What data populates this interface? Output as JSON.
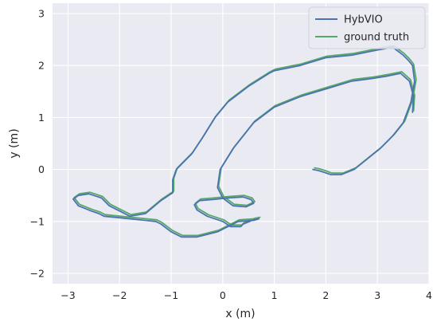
{
  "chart_data": {
    "type": "line",
    "xlabel": "x (m)",
    "ylabel": "y (m)",
    "xlim": [
      -3.3,
      4.0
    ],
    "ylim": [
      -2.2,
      3.2
    ],
    "xticks": [
      "−3",
      "−2",
      "−1",
      "0",
      "1",
      "2",
      "3",
      "4"
    ],
    "xtick_values": [
      -3,
      -2,
      -1,
      0,
      1,
      2,
      3,
      4
    ],
    "yticks": [
      "3",
      "2",
      "1",
      "0",
      "−1",
      "−2"
    ],
    "ytick_values": [
      3,
      2,
      1,
      0,
      -1,
      -2
    ],
    "grid": true,
    "background": "#eaeaf2",
    "legend_position": "top-right",
    "series": [
      {
        "name": "HybVIO",
        "color": "#4c72b0",
        "x": [
          1.75,
          1.85,
          1.95,
          2.1,
          2.3,
          2.55,
          2.8,
          3.05,
          3.3,
          3.5,
          3.65,
          3.72,
          3.68,
          3.6,
          3.5,
          3.3,
          3.0,
          2.5,
          2.0,
          1.5,
          1.0,
          0.9,
          0.5,
          0.1,
          -0.15,
          -0.4,
          -0.6,
          -0.9,
          -0.97,
          -0.97,
          -1.05,
          -1.2,
          -1.5,
          -1.8,
          -2.0,
          -2.2,
          -2.35,
          -2.5,
          -2.6,
          -2.8,
          -2.9,
          -2.8,
          -2.55,
          -2.4,
          -2.3,
          -2.0,
          -1.5,
          -1.3,
          -1.2,
          -1.0,
          -0.8,
          -0.5,
          -0.1,
          0.3,
          0.6,
          0.7,
          0.6,
          0.4,
          0.35,
          0.15,
          0.0,
          -0.3,
          -0.5,
          -0.55,
          -0.45,
          -0.2,
          0.1,
          0.4,
          0.55,
          0.6,
          0.45,
          0.2,
          0.0,
          -0.1,
          -0.05,
          0.2,
          0.6,
          1.0,
          1.5,
          2.0,
          2.5,
          2.9,
          3.2,
          3.45,
          3.62,
          3.7,
          3.68
        ],
        "y": [
          0.0,
          -0.02,
          -0.05,
          -0.1,
          -0.1,
          0.0,
          0.2,
          0.4,
          0.65,
          0.9,
          1.3,
          1.7,
          2.0,
          2.1,
          2.2,
          2.35,
          2.3,
          2.2,
          2.15,
          2.0,
          1.9,
          1.85,
          1.6,
          1.3,
          1.0,
          0.6,
          0.3,
          0.0,
          -0.2,
          -0.45,
          -0.5,
          -0.6,
          -0.85,
          -0.9,
          -0.8,
          -0.7,
          -0.55,
          -0.5,
          -0.47,
          -0.5,
          -0.57,
          -0.7,
          -0.8,
          -0.85,
          -0.9,
          -0.93,
          -0.98,
          -1.0,
          -1.05,
          -1.2,
          -1.3,
          -1.3,
          -1.2,
          -1.0,
          -0.98,
          -0.95,
          -0.97,
          -1.05,
          -1.1,
          -1.1,
          -1.0,
          -0.9,
          -0.78,
          -0.68,
          -0.6,
          -0.58,
          -0.55,
          -0.53,
          -0.58,
          -0.65,
          -0.72,
          -0.7,
          -0.55,
          -0.35,
          0.0,
          0.4,
          0.9,
          1.2,
          1.4,
          1.55,
          1.7,
          1.75,
          1.8,
          1.85,
          1.7,
          1.4,
          1.1
        ]
      },
      {
        "name": "ground truth",
        "color": "#55a868",
        "x": [
          1.78,
          1.88,
          1.98,
          2.12,
          2.33,
          2.58,
          2.83,
          3.08,
          3.33,
          3.53,
          3.68,
          3.75,
          3.7,
          3.62,
          3.52,
          3.32,
          3.02,
          2.52,
          2.02,
          1.52,
          1.02,
          0.92,
          0.52,
          0.12,
          -0.13,
          -0.38,
          -0.58,
          -0.88,
          -0.95,
          -0.95,
          -1.03,
          -1.18,
          -1.48,
          -1.78,
          -1.98,
          -2.18,
          -2.33,
          -2.48,
          -2.58,
          -2.78,
          -2.88,
          -2.78,
          -2.53,
          -2.38,
          -2.28,
          -1.98,
          -1.48,
          -1.28,
          -1.18,
          -0.98,
          -0.78,
          -0.48,
          -0.08,
          0.32,
          0.62,
          0.72,
          0.62,
          0.42,
          0.37,
          0.17,
          0.02,
          -0.28,
          -0.48,
          -0.53,
          -0.43,
          -0.18,
          0.12,
          0.42,
          0.57,
          0.62,
          0.47,
          0.22,
          0.02,
          -0.08,
          -0.03,
          0.22,
          0.62,
          1.02,
          1.52,
          2.02,
          2.52,
          2.92,
          3.22,
          3.47,
          3.64,
          3.72,
          3.7
        ],
        "y": [
          0.03,
          0.01,
          -0.02,
          -0.07,
          -0.07,
          0.03,
          0.23,
          0.43,
          0.68,
          0.93,
          1.33,
          1.73,
          2.03,
          2.13,
          2.23,
          2.38,
          2.33,
          2.23,
          2.18,
          2.03,
          1.93,
          1.88,
          1.63,
          1.33,
          1.03,
          0.63,
          0.33,
          0.03,
          -0.17,
          -0.42,
          -0.47,
          -0.57,
          -0.82,
          -0.87,
          -0.77,
          -0.67,
          -0.52,
          -0.47,
          -0.44,
          -0.47,
          -0.54,
          -0.67,
          -0.77,
          -0.82,
          -0.87,
          -0.9,
          -0.95,
          -0.97,
          -1.02,
          -1.17,
          -1.27,
          -1.27,
          -1.17,
          -0.97,
          -0.95,
          -0.92,
          -0.94,
          -1.02,
          -1.07,
          -1.07,
          -0.97,
          -0.87,
          -0.75,
          -0.65,
          -0.57,
          -0.55,
          -0.52,
          -0.5,
          -0.55,
          -0.62,
          -0.69,
          -0.67,
          -0.52,
          -0.32,
          0.03,
          0.43,
          0.93,
          1.23,
          1.43,
          1.58,
          1.73,
          1.78,
          1.83,
          1.88,
          1.73,
          1.43,
          1.13
        ]
      }
    ]
  }
}
